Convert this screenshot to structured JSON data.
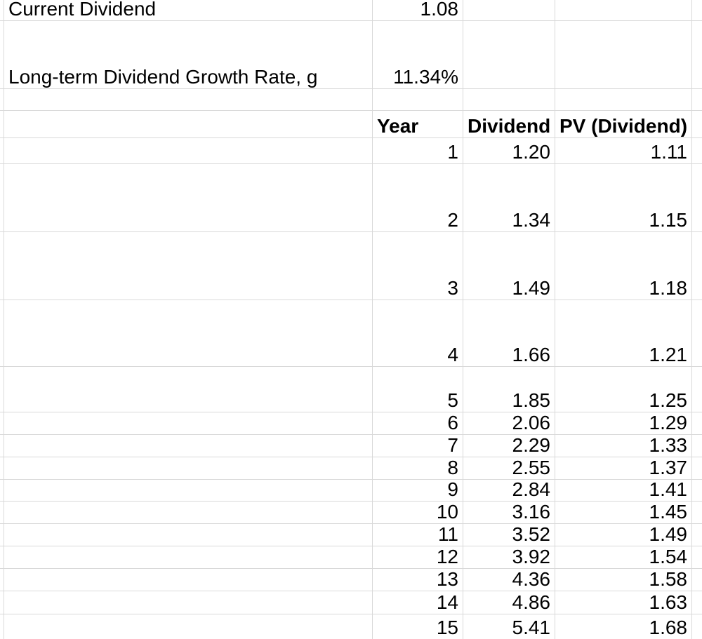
{
  "sheet": {
    "colors": {
      "background": "#ffffff",
      "gridline": "#d9d9d9",
      "text": "#000000"
    },
    "params": [
      {
        "label": "Current Dividend",
        "value": "1.08"
      },
      {
        "label": "Long-term Dividend Growth Rate, g",
        "value": "11.34%"
      }
    ],
    "table": {
      "headers": {
        "year": "Year",
        "dividend": "Dividend",
        "pv": "PV (Dividend)"
      },
      "rows": [
        {
          "year": "1",
          "dividend": "1.20",
          "pv": "1.11"
        },
        {
          "year": "2",
          "dividend": "1.34",
          "pv": "1.15"
        },
        {
          "year": "3",
          "dividend": "1.49",
          "pv": "1.18"
        },
        {
          "year": "4",
          "dividend": "1.66",
          "pv": "1.21"
        },
        {
          "year": "5",
          "dividend": "1.85",
          "pv": "1.25"
        },
        {
          "year": "6",
          "dividend": "2.06",
          "pv": "1.29"
        },
        {
          "year": "7",
          "dividend": "2.29",
          "pv": "1.33"
        },
        {
          "year": "8",
          "dividend": "2.55",
          "pv": "1.37"
        },
        {
          "year": "9",
          "dividend": "2.84",
          "pv": "1.41"
        },
        {
          "year": "10",
          "dividend": "3.16",
          "pv": "1.45"
        },
        {
          "year": "11",
          "dividend": "3.52",
          "pv": "1.49"
        },
        {
          "year": "12",
          "dividend": "3.92",
          "pv": "1.54"
        },
        {
          "year": "13",
          "dividend": "4.36",
          "pv": "1.58"
        },
        {
          "year": "14",
          "dividend": "4.86",
          "pv": "1.63"
        },
        {
          "year": "15",
          "dividend": "5.41",
          "pv": "1.68"
        }
      ]
    }
  }
}
